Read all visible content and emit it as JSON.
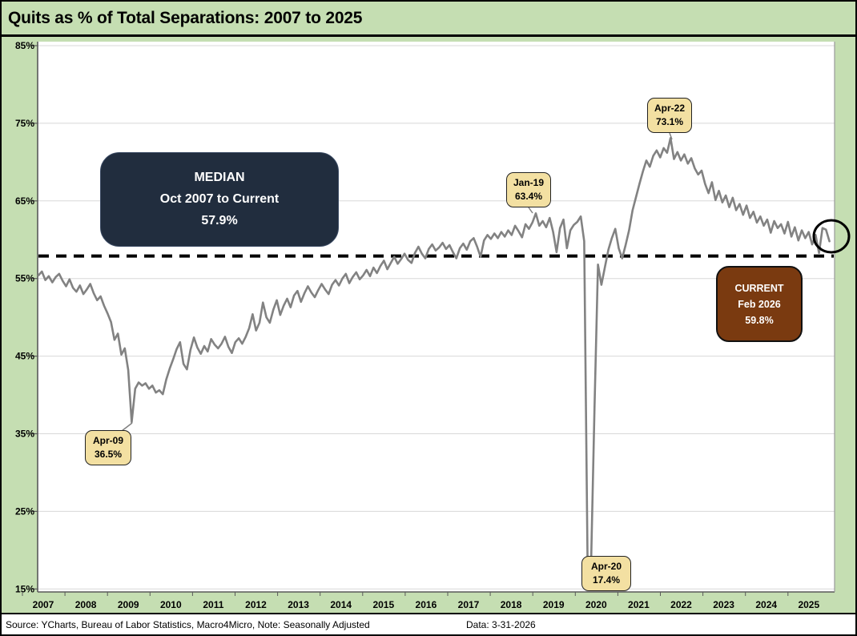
{
  "title": "Quits as % of Total Separations: 2007 to 2025",
  "footer": {
    "source": "Source: YCharts, Bureau of Labor Statistics, Macro4Micro, Note: Seasonally Adjusted",
    "data_date": "Data: 3-31-2026"
  },
  "annotations": {
    "median": {
      "line1": "MEDIAN",
      "line2": "Oct 2007 to Current",
      "line3": "57.9%"
    },
    "current": {
      "line1": "CURRENT",
      "line2": "Feb 2026",
      "line3": "59.8%"
    },
    "callouts": [
      {
        "id": "apr09",
        "label": "Apr-09",
        "value": "36.5%"
      },
      {
        "id": "jan19",
        "label": "Jan-19",
        "value": "63.4%"
      },
      {
        "id": "apr22",
        "label": "Apr-22",
        "value": "73.1%"
      },
      {
        "id": "apr20",
        "label": "Apr-20",
        "value": "17.4%"
      }
    ]
  },
  "colors": {
    "background": "#c5deb2",
    "plot_background": "#ffffff",
    "gridline": "#d8d8d8",
    "series_line": "#828282",
    "median_dash": "#000000",
    "callout_fill": "#f3e0a2",
    "median_box": "#212d3e",
    "current_box": "#7a3a10",
    "highlight_circle": "#000000"
  },
  "chart_data": {
    "type": "line",
    "title": "Quits as % of Total Separations: 2007 to 2025",
    "x_start": "2007-01",
    "x_end": "2026-02",
    "freq": "monthly",
    "ylim": [
      15,
      85
    ],
    "y_ticks": [
      85,
      75,
      65,
      55,
      45,
      35,
      25,
      15
    ],
    "y_tick_labels": [
      "85%",
      "75%",
      "65%",
      "55%",
      "45%",
      "35%",
      "25%",
      "15%"
    ],
    "x_tick_labels": [
      "2007",
      "2008",
      "2009",
      "2010",
      "2011",
      "2012",
      "2013",
      "2014",
      "2015",
      "2016",
      "2017",
      "2018",
      "2019",
      "2020",
      "2021",
      "2022",
      "2023",
      "2024",
      "2025"
    ],
    "median_line_value": 57.9,
    "grid": true,
    "legend": false,
    "key_points": [
      {
        "label": "Apr-09",
        "value": 36.5
      },
      {
        "label": "Jan-19",
        "value": 63.4
      },
      {
        "label": "Apr-20",
        "value": 17.4
      },
      {
        "label": "Apr-22",
        "value": 73.1
      },
      {
        "label": "Feb-26 (current)",
        "value": 59.8
      }
    ],
    "series": [
      {
        "name": "Quits as % of Total Separations",
        "values": [
          55.4,
          55.9,
          54.8,
          55.3,
          54.5,
          55.2,
          55.6,
          54.7,
          54.0,
          54.9,
          53.8,
          53.3,
          54.1,
          53.0,
          53.6,
          54.3,
          53.1,
          52.2,
          52.7,
          51.5,
          50.5,
          49.4,
          47.1,
          47.9,
          45.2,
          46.0,
          43.2,
          36.5,
          40.8,
          41.6,
          41.2,
          41.5,
          40.8,
          41.2,
          40.3,
          40.6,
          40.1,
          42.0,
          43.4,
          44.6,
          45.9,
          46.8,
          44.0,
          43.3,
          45.8,
          47.4,
          46.1,
          45.3,
          46.3,
          45.6,
          47.2,
          46.5,
          46.0,
          46.6,
          47.5,
          46.2,
          45.4,
          46.8,
          47.3,
          46.6,
          47.5,
          48.6,
          50.4,
          48.3,
          49.3,
          51.9,
          50.0,
          49.3,
          51.0,
          52.2,
          50.3,
          51.5,
          52.4,
          51.3,
          52.8,
          53.4,
          52.0,
          53.1,
          54.0,
          53.2,
          52.6,
          53.5,
          54.3,
          53.6,
          53.0,
          54.2,
          54.8,
          54.1,
          55.0,
          55.6,
          54.4,
          55.2,
          55.8,
          54.9,
          55.4,
          56.1,
          55.3,
          56.4,
          55.7,
          56.6,
          57.3,
          56.2,
          57.0,
          57.8,
          56.9,
          57.5,
          58.2,
          57.4,
          57.0,
          58.3,
          59.1,
          58.2,
          57.6,
          58.8,
          59.4,
          58.6,
          59.0,
          59.6,
          58.8,
          59.3,
          58.4,
          57.6,
          58.9,
          59.5,
          58.7,
          59.8,
          60.2,
          59.1,
          57.8,
          59.9,
          60.6,
          60.1,
          60.8,
          60.2,
          61.0,
          60.4,
          61.2,
          60.6,
          61.8,
          61.1,
          60.3,
          62.0,
          61.4,
          62.2,
          63.4,
          61.8,
          62.4,
          61.6,
          62.8,
          61.0,
          58.4,
          61.5,
          62.6,
          58.9,
          61.2,
          61.9,
          62.3,
          63.0,
          59.8,
          17.4,
          18.3,
          38.5,
          56.8,
          54.2,
          56.5,
          58.7,
          60.2,
          61.4,
          58.9,
          57.6,
          59.3,
          61.2,
          63.8,
          65.5,
          67.2,
          68.8,
          70.2,
          69.4,
          70.8,
          71.5,
          70.6,
          71.8,
          71.2,
          73.1,
          70.4,
          71.3,
          70.2,
          71.0,
          69.8,
          70.5,
          69.2,
          68.4,
          68.9,
          67.2,
          66.0,
          67.4,
          65.1,
          66.3,
          64.8,
          65.7,
          64.2,
          65.4,
          63.8,
          64.6,
          63.2,
          64.4,
          62.8,
          63.6,
          62.2,
          63.0,
          61.8,
          62.6,
          60.9,
          62.4,
          61.5,
          62.0,
          60.8,
          62.3,
          60.4,
          61.6,
          59.9,
          61.2,
          60.2,
          61.0,
          59.4,
          60.6,
          58.3,
          61.5,
          61.3,
          59.8
        ]
      }
    ]
  }
}
